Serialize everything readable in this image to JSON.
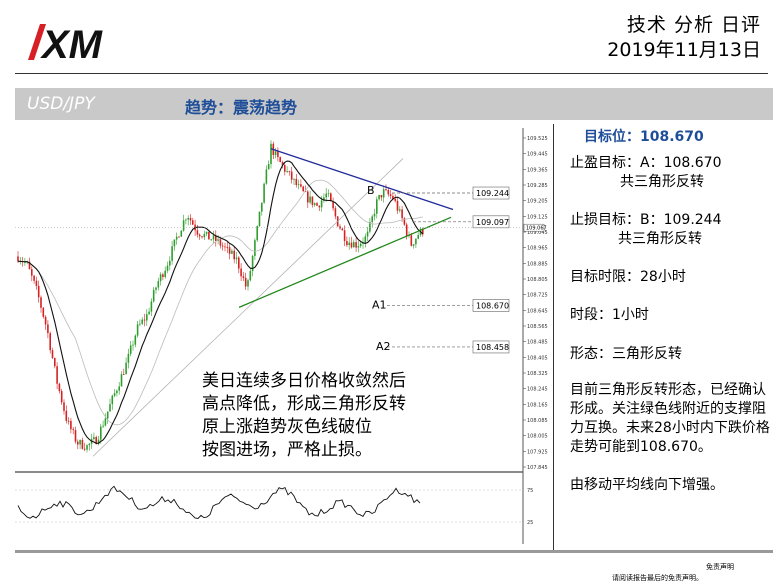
{
  "header": {
    "logo_text": "XM",
    "title": "技术 分析 日评",
    "date": "2019年11月13日"
  },
  "banner": {
    "pair": "USD/JPY",
    "trend": "趋势：震荡趋势"
  },
  "chart": {
    "price_ticks": [
      "109.525",
      "109.445",
      "109.365",
      "109.285",
      "109.205",
      "109.125",
      "109.045",
      "108.965",
      "108.885",
      "108.805",
      "108.725",
      "108.645",
      "108.565",
      "108.485",
      "108.405",
      "108.325",
      "108.245",
      "108.165",
      "108.085",
      "108.005",
      "107.925",
      "107.845"
    ],
    "current_price": "109.067",
    "osc_ticks": [
      "75",
      "25"
    ],
    "levels": [
      {
        "label": "109.244",
        "value": 109.244
      },
      {
        "label": "109.097",
        "value": 109.097
      },
      {
        "label": "108.670",
        "value": 108.67
      },
      {
        "label": "108.458",
        "value": 108.458
      }
    ],
    "marks": {
      "b": "B",
      "a1": "A1",
      "a2": "A2"
    },
    "annotation": [
      "美日连续多日价格收敛然后",
      "高点降低，形成三角形反转",
      "原上涨趋势灰色线破位",
      "按图进场，严格止损。"
    ],
    "colors": {
      "up": "#2e9d2e",
      "down": "#d42121",
      "triangle_top": "#1f2b99",
      "triangle_bottom": "#22881c",
      "ma": "#111111",
      "gray": "#aaaaaa"
    }
  },
  "panel": {
    "target_label": "目标位：108.670",
    "take_profit": "止盈目标：A：108.670",
    "take_profit_note": "共三角形反转",
    "stop_loss": "止损目标：B：109.244",
    "stop_loss_note": "共三角形反转",
    "time_limit": "目标时限：28小时",
    "timeframe": "时段：1小时",
    "pattern": "形态：三角形反转",
    "description": "目前三角形反转形态，已经确认形成。关注绿色线附近的支撑阻力互换。未来28小时内下跌价格走势可能到108.670。",
    "ma_note": "由移动平均线向下增强。"
  },
  "footer": {
    "disclaimer_title": "免责声明",
    "disclaimer_text": "请阅读报告最后的免责声明。"
  }
}
